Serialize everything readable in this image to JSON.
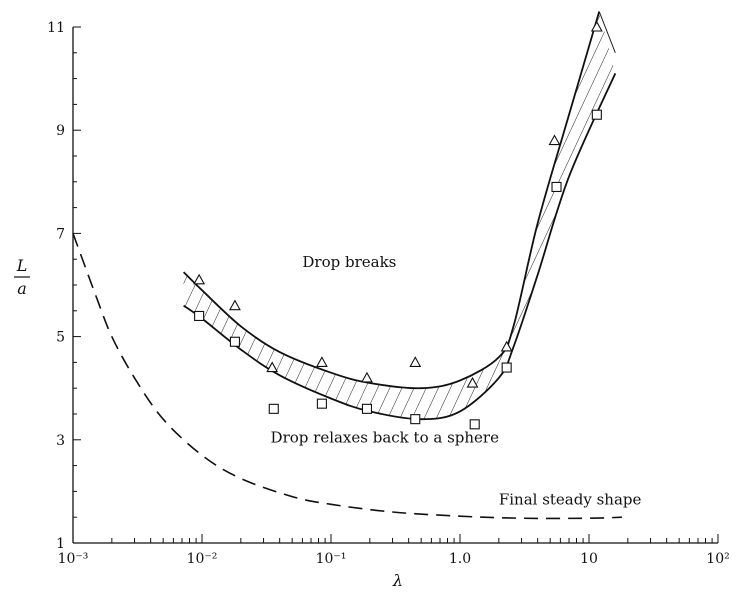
{
  "chart_data": {
    "type": "scatter",
    "x_scale": "log",
    "xlim": [
      0.001,
      100
    ],
    "ylim": [
      1,
      11
    ],
    "xlabel": "λ",
    "ylabel_num": "L",
    "ylabel_den": "a",
    "grid": false,
    "x_ticks": [
      {
        "value": 0.001,
        "label": "10⁻³"
      },
      {
        "value": 0.01,
        "label": "10⁻²"
      },
      {
        "value": 0.1,
        "label": "10⁻¹"
      },
      {
        "value": 1,
        "label": "1.0"
      },
      {
        "value": 10,
        "label": "10"
      },
      {
        "value": 100,
        "label": "10²"
      }
    ],
    "y_ticks": [
      {
        "value": 1,
        "label": "1"
      },
      {
        "value": 3,
        "label": "3"
      },
      {
        "value": 5,
        "label": "5"
      },
      {
        "value": 7,
        "label": "7"
      },
      {
        "value": 9,
        "label": "9"
      },
      {
        "value": 11,
        "label": "11"
      }
    ],
    "series": [
      {
        "marker": "triangle",
        "points": [
          {
            "x": 0.0095,
            "y": 6.1
          },
          {
            "x": 0.018,
            "y": 5.6
          },
          {
            "x": 0.035,
            "y": 4.4
          },
          {
            "x": 0.085,
            "y": 4.5
          },
          {
            "x": 0.19,
            "y": 4.2
          },
          {
            "x": 0.45,
            "y": 4.5
          },
          {
            "x": 1.25,
            "y": 4.1
          },
          {
            "x": 2.3,
            "y": 4.8
          },
          {
            "x": 5.4,
            "y": 8.8
          },
          {
            "x": 11.5,
            "y": 11.0
          }
        ]
      },
      {
        "marker": "square",
        "points": [
          {
            "x": 0.0095,
            "y": 5.4
          },
          {
            "x": 0.018,
            "y": 4.9
          },
          {
            "x": 0.036,
            "y": 3.6
          },
          {
            "x": 0.085,
            "y": 3.7
          },
          {
            "x": 0.19,
            "y": 3.6
          },
          {
            "x": 0.45,
            "y": 3.4
          },
          {
            "x": 1.3,
            "y": 3.3
          },
          {
            "x": 2.3,
            "y": 4.4
          },
          {
            "x": 5.6,
            "y": 7.9
          },
          {
            "x": 11.5,
            "y": 9.3
          }
        ]
      }
    ],
    "band": {
      "upper": [
        {
          "x": 0.0072,
          "y": 6.25
        },
        {
          "x": 0.01,
          "y": 5.9
        },
        {
          "x": 0.02,
          "y": 5.2
        },
        {
          "x": 0.04,
          "y": 4.7
        },
        {
          "x": 0.1,
          "y": 4.3
        },
        {
          "x": 0.2,
          "y": 4.1
        },
        {
          "x": 0.5,
          "y": 4.0
        },
        {
          "x": 1.0,
          "y": 4.15
        },
        {
          "x": 2.0,
          "y": 4.6
        },
        {
          "x": 2.6,
          "y": 5.2
        },
        {
          "x": 4.0,
          "y": 7.2
        },
        {
          "x": 7.0,
          "y": 9.3
        },
        {
          "x": 12.0,
          "y": 11.3
        }
      ],
      "lower": [
        {
          "x": 0.0072,
          "y": 5.6
        },
        {
          "x": 0.01,
          "y": 5.35
        },
        {
          "x": 0.02,
          "y": 4.75
        },
        {
          "x": 0.04,
          "y": 4.25
        },
        {
          "x": 0.1,
          "y": 3.8
        },
        {
          "x": 0.2,
          "y": 3.55
        },
        {
          "x": 0.5,
          "y": 3.4
        },
        {
          "x": 1.0,
          "y": 3.55
        },
        {
          "x": 2.0,
          "y": 4.2
        },
        {
          "x": 2.6,
          "y": 4.8
        },
        {
          "x": 4.0,
          "y": 6.2
        },
        {
          "x": 7.0,
          "y": 8.1
        },
        {
          "x": 16.0,
          "y": 10.1
        }
      ],
      "right_edge": [
        {
          "x": 12.0,
          "y": 11.3
        },
        {
          "x": 16.0,
          "y": 10.5
        }
      ]
    },
    "dashed_curve": [
      {
        "x": 0.001,
        "y": 7.0
      },
      {
        "x": 0.0015,
        "y": 5.8
      },
      {
        "x": 0.002,
        "y": 5.0
      },
      {
        "x": 0.003,
        "y": 4.2
      },
      {
        "x": 0.005,
        "y": 3.4
      },
      {
        "x": 0.01,
        "y": 2.7
      },
      {
        "x": 0.02,
        "y": 2.25
      },
      {
        "x": 0.05,
        "y": 1.9
      },
      {
        "x": 0.1,
        "y": 1.75
      },
      {
        "x": 0.3,
        "y": 1.6
      },
      {
        "x": 1.0,
        "y": 1.52
      },
      {
        "x": 3.0,
        "y": 1.48
      },
      {
        "x": 10.0,
        "y": 1.48
      },
      {
        "x": 18.0,
        "y": 1.5
      }
    ],
    "annotations": [
      {
        "text": "Drop breaks",
        "x": 0.06,
        "y": 6.35
      },
      {
        "text": "Drop relaxes back to a sphere",
        "x": 0.034,
        "y": 2.95
      },
      {
        "text": "Final steady shape",
        "x": 2.0,
        "y": 1.75
      }
    ]
  }
}
